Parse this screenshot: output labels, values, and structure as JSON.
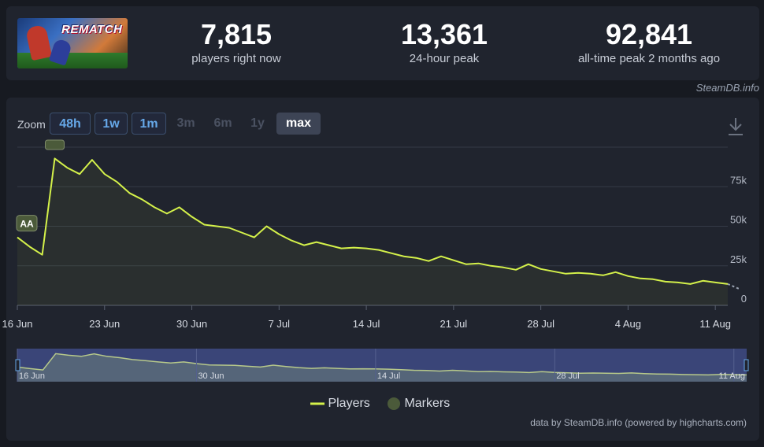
{
  "header": {
    "game_logo_text": "REMATCH",
    "stats": [
      {
        "value": "7,815",
        "label": "players right now"
      },
      {
        "value": "13,361",
        "label": "24-hour peak"
      },
      {
        "value": "92,841",
        "label": "all-time peak 2 months ago"
      }
    ],
    "credit": "SteamDB.info"
  },
  "zoom": {
    "label": "Zoom",
    "buttons": [
      {
        "label": "48h",
        "state": "active"
      },
      {
        "label": "1w",
        "state": "active"
      },
      {
        "label": "1m",
        "state": "active"
      },
      {
        "label": "3m",
        "state": "disabled"
      },
      {
        "label": "6m",
        "state": "disabled"
      },
      {
        "label": "1y",
        "state": "disabled"
      },
      {
        "label": "max",
        "state": "selected"
      }
    ]
  },
  "colors": {
    "line": "#d4f14a",
    "marker": "#4b5a3a",
    "navigator_bg": "#3a4578"
  },
  "chart_data": {
    "type": "line",
    "x_tick_labels": [
      "16 Jun",
      "23 Jun",
      "30 Jun",
      "7 Jul",
      "14 Jul",
      "21 Jul",
      "28 Jul",
      "4 Aug",
      "11 Aug"
    ],
    "y_tick_labels": [
      "0",
      "25k",
      "50k",
      "75k"
    ],
    "ylim": [
      0,
      100000
    ],
    "x": [
      "2025-06-16",
      "2025-06-17",
      "2025-06-18",
      "2025-06-19",
      "2025-06-20",
      "2025-06-21",
      "2025-06-22",
      "2025-06-23",
      "2025-06-24",
      "2025-06-25",
      "2025-06-26",
      "2025-06-27",
      "2025-06-28",
      "2025-06-29",
      "2025-06-30",
      "2025-07-01",
      "2025-07-02",
      "2025-07-03",
      "2025-07-04",
      "2025-07-05",
      "2025-07-06",
      "2025-07-07",
      "2025-07-08",
      "2025-07-09",
      "2025-07-10",
      "2025-07-11",
      "2025-07-12",
      "2025-07-13",
      "2025-07-14",
      "2025-07-15",
      "2025-07-16",
      "2025-07-17",
      "2025-07-18",
      "2025-07-19",
      "2025-07-20",
      "2025-07-21",
      "2025-07-22",
      "2025-07-23",
      "2025-07-24",
      "2025-07-25",
      "2025-07-26",
      "2025-07-27",
      "2025-07-28",
      "2025-07-29",
      "2025-07-30",
      "2025-07-31",
      "2025-08-01",
      "2025-08-02",
      "2025-08-03",
      "2025-08-04",
      "2025-08-05",
      "2025-08-06",
      "2025-08-07",
      "2025-08-08",
      "2025-08-09",
      "2025-08-10",
      "2025-08-11",
      "2025-08-12"
    ],
    "series": [
      {
        "name": "Players",
        "values": [
          43000,
          37000,
          32000,
          92841,
          87000,
          83000,
          92000,
          83000,
          78000,
          71000,
          67000,
          62000,
          58000,
          62000,
          56000,
          51000,
          50000,
          49000,
          46000,
          43000,
          50000,
          45000,
          41000,
          38000,
          40000,
          38000,
          36000,
          36500,
          36000,
          35000,
          33000,
          31000,
          30000,
          28000,
          31000,
          28500,
          26000,
          26500,
          25000,
          24000,
          22500,
          26000,
          23000,
          21500,
          20000,
          20500,
          20000,
          19000,
          21000,
          18500,
          17000,
          16500,
          15000,
          14500,
          13500,
          15500,
          14500,
          13500
        ]
      }
    ],
    "markers": [
      {
        "label": "AA",
        "x": "2025-06-16"
      },
      {
        "label": "",
        "x": "2025-06-19"
      }
    ],
    "navigator": {
      "x_tick_labels": [
        "16 Jun",
        "30 Jun",
        "14 Jul",
        "28 Jul",
        "11 Aug"
      ]
    }
  },
  "legend": {
    "players": "Players",
    "markers": "Markers"
  },
  "footer": {
    "credit": "data by SteamDB.info (powered by highcharts.com)"
  }
}
